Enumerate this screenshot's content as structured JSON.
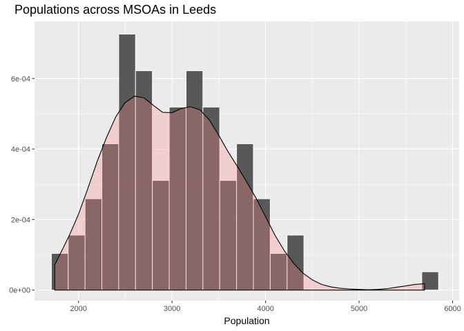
{
  "chart_data": {
    "type": "bar",
    "title": "Populations across MSOAs in Leeds",
    "xlabel": "Population",
    "ylabel": "",
    "xlim": [
      1530,
      6070
    ],
    "ylim": [
      -3e-05,
      0.000762
    ],
    "x_ticks": [
      {
        "value": 2000,
        "label": "2000"
      },
      {
        "value": 3000,
        "label": "3000"
      },
      {
        "value": 4000,
        "label": "4000"
      },
      {
        "value": 5000,
        "label": "5000"
      },
      {
        "value": 6000,
        "label": "6000"
      }
    ],
    "y_ticks": [
      {
        "value": 0,
        "label": "0e+00"
      },
      {
        "value": 0.0002,
        "label": "2e-04"
      },
      {
        "value": 0.0004,
        "label": "4e-04"
      },
      {
        "value": 0.0006,
        "label": "6e-04"
      }
    ],
    "histogram": {
      "bin_width": 180,
      "bin_starts": [
        1710,
        1890,
        2070,
        2250,
        2430,
        2610,
        2790,
        2970,
        3150,
        3330,
        3510,
        3690,
        3870,
        4050,
        4230,
        5670
      ],
      "density": [
        0.000104,
        0.000156,
        0.000259,
        0.000415,
        0.000726,
        0.000622,
        0.000311,
        0.000519,
        0.000622,
        0.000519,
        0.000311,
        0.000415,
        0.000259,
        0.000104,
        0.000156,
        5.2e-05
      ]
    },
    "density_curve": {
      "x": [
        1746,
        1800,
        1900,
        2000,
        2100,
        2200,
        2300,
        2400,
        2500,
        2600,
        2700,
        2800,
        2900,
        3000,
        3100,
        3200,
        3300,
        3400,
        3500,
        3600,
        3700,
        3800,
        3900,
        4000,
        4100,
        4200,
        4300,
        4400,
        4500,
        4600,
        4700,
        4800,
        4900,
        5000,
        5100,
        5200,
        5300,
        5400,
        5500,
        5600,
        5700
      ],
      "y": [
        7.2e-05,
        0.0001,
        0.000154,
        0.000215,
        0.000288,
        0.000365,
        0.000433,
        0.000492,
        0.000532,
        0.00055,
        0.000545,
        0.000524,
        0.000504,
        0.000503,
        0.000515,
        0.00052,
        0.000511,
        0.000482,
        0.000439,
        0.000392,
        0.00035,
        0.000306,
        0.00026,
        0.000208,
        0.000156,
        0.000112,
        7.6e-05,
        4.8e-05,
        2.9e-05,
        1.6e-05,
        9e-06,
        5e-06,
        3e-06,
        2e-06,
        1e-06,
        2e-06,
        4e-06,
        8e-06,
        1.2e-05,
        1.6e-05,
        1.8e-05
      ]
    },
    "colors": {
      "panel_background": "#ebebeb",
      "grid_major": "#ffffff",
      "bar_fill": "#333333",
      "bar_stroke": "#ffffff",
      "density_fill": "#ff8a8a",
      "density_line": "#000000"
    },
    "grid": true
  }
}
